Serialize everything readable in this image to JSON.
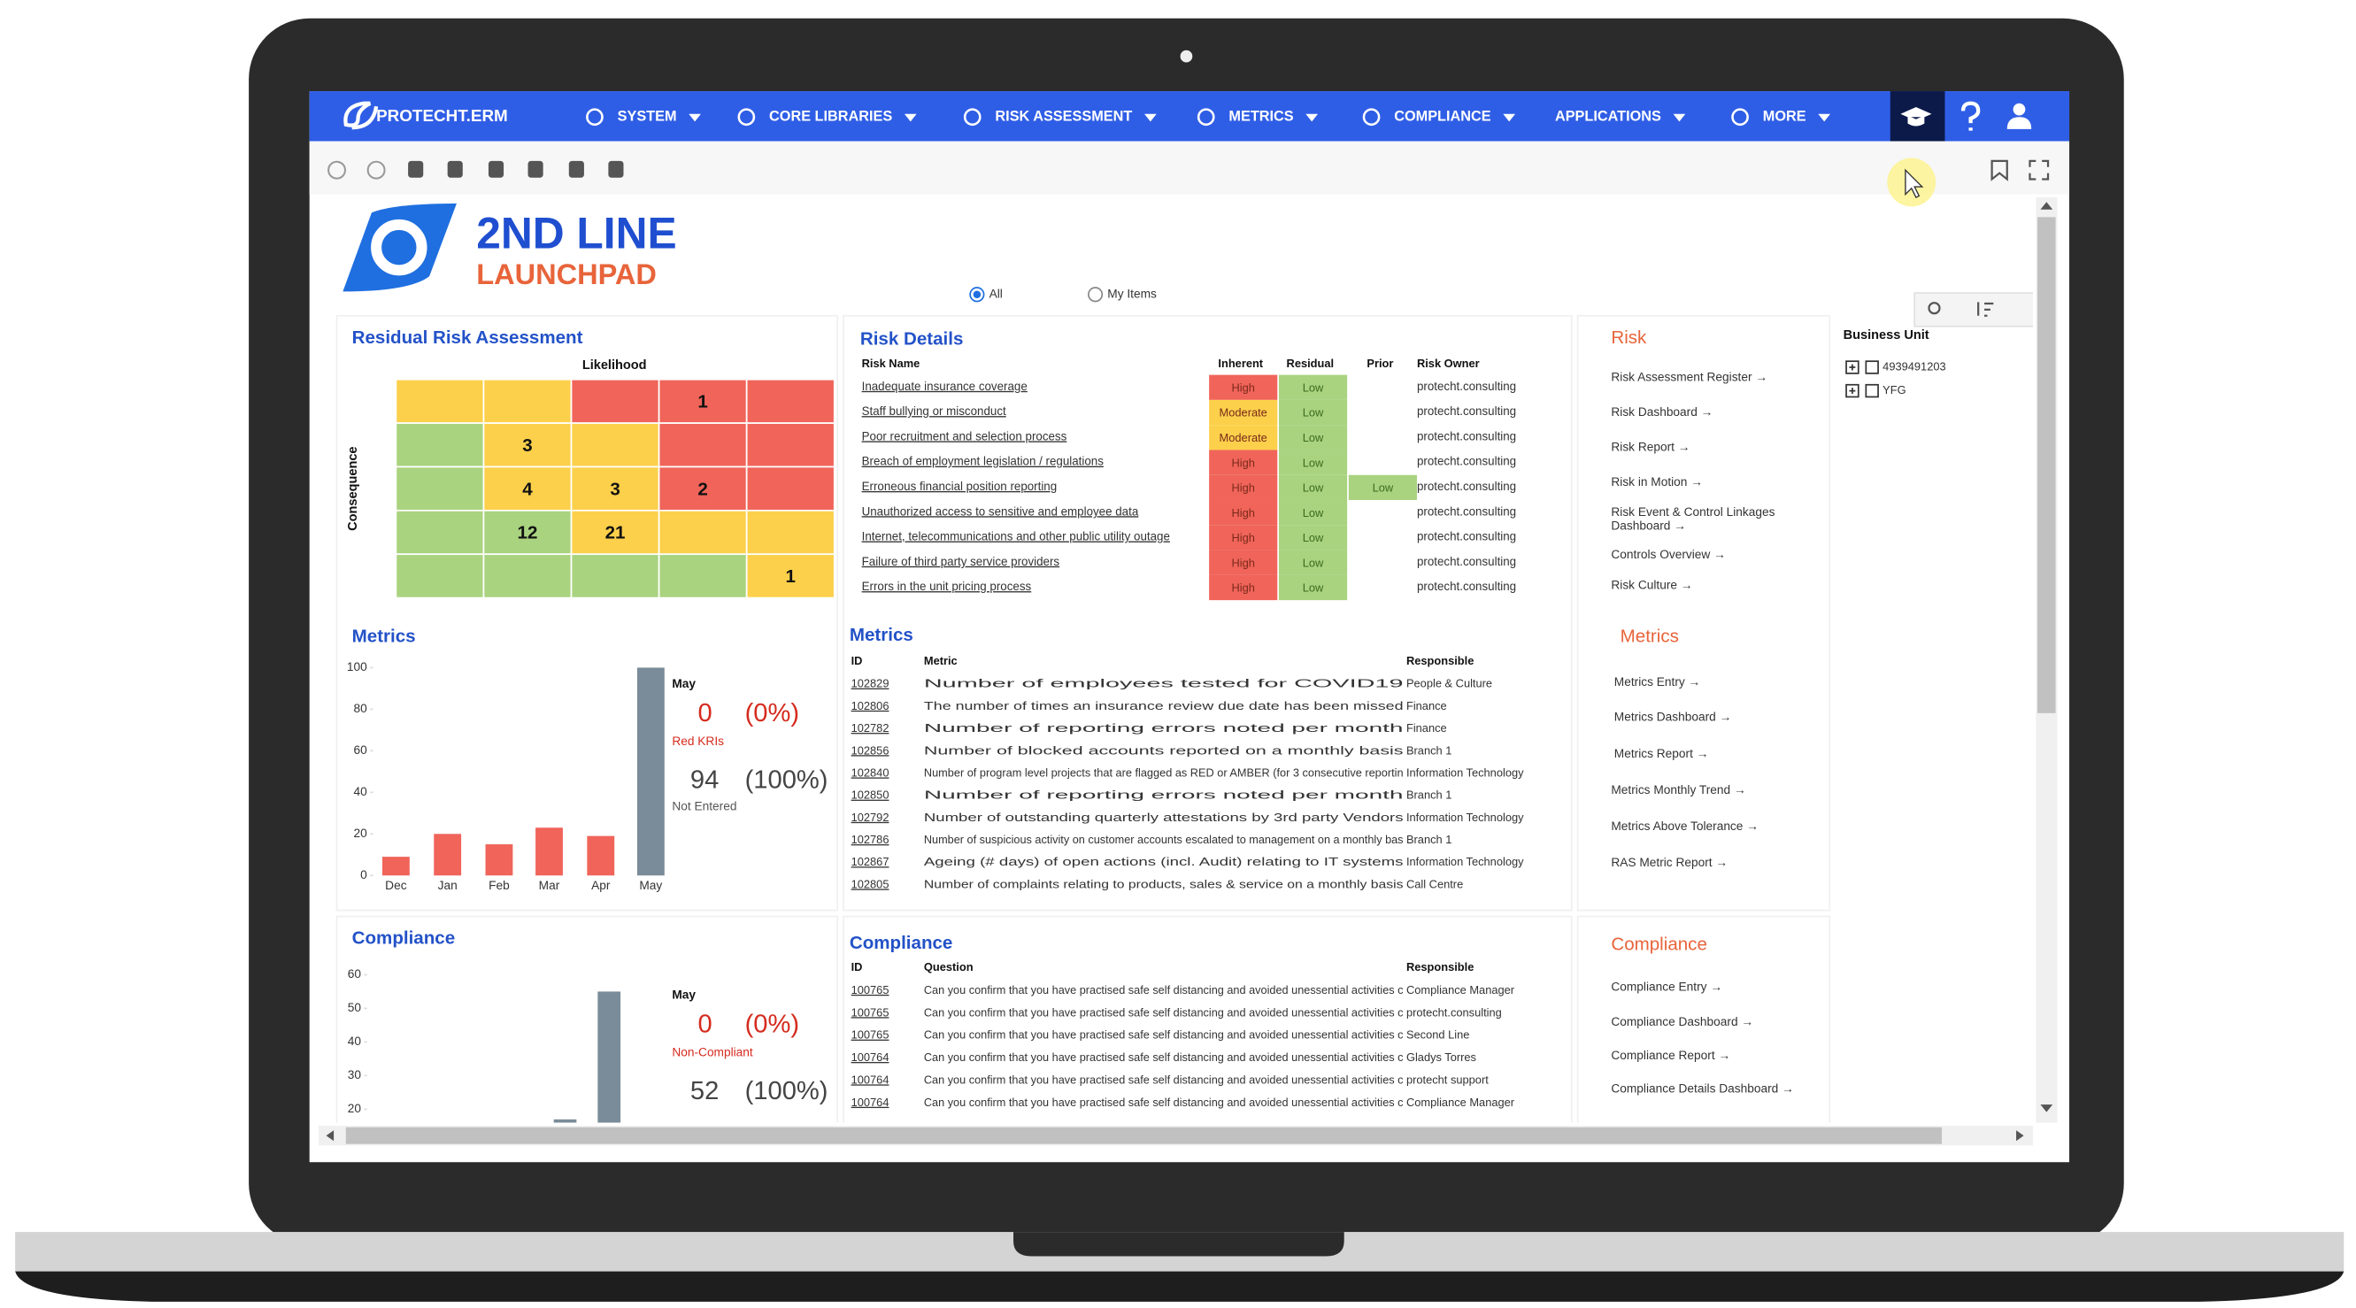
{
  "nav": {
    "brand": "PROTECHT.ERM",
    "items": [
      "SYSTEM",
      "CORE LIBRARIES",
      "RISK ASSESSMENT",
      "METRICS",
      "COMPLIANCE",
      "APPLICATIONS",
      "MORE"
    ]
  },
  "header": {
    "title": "2ND LINE",
    "subtitle": "LAUNCHPAD",
    "filters": [
      "All",
      "My Items"
    ]
  },
  "heatmap": {
    "title": "Residual Risk Assessment",
    "x_label": "Likelihood",
    "y_label": "Consequence",
    "counts": [
      [
        null,
        null,
        null,
        1,
        null
      ],
      [
        null,
        3,
        null,
        null,
        null
      ],
      [
        null,
        4,
        3,
        2,
        null
      ],
      [
        null,
        12,
        21,
        null,
        null
      ],
      [
        null,
        null,
        null,
        null,
        1
      ]
    ],
    "cell_colors": [
      [
        "#fcd04b",
        "#fcd04b",
        "#f0645a",
        "#f0645a",
        "#f0645a"
      ],
      [
        "#a9d37f",
        "#fcd04b",
        "#fcd04b",
        "#f0645a",
        "#f0645a"
      ],
      [
        "#a9d37f",
        "#fcd04b",
        "#fcd04b",
        "#f0645a",
        "#f0645a"
      ],
      [
        "#a9d37f",
        "#a9d37f",
        "#fcd04b",
        "#fcd04b",
        "#fcd04b"
      ],
      [
        "#a9d37f",
        "#a9d37f",
        "#a9d37f",
        "#a9d37f",
        "#fcd04b"
      ]
    ]
  },
  "risk_details": {
    "title": "Risk Details",
    "columns": [
      "Risk Name",
      "Inherent",
      "Residual",
      "Prior",
      "Risk Owner"
    ],
    "level_colors": {
      "High": "#f0645a",
      "Moderate": "#fcd04b",
      "Low": "#a9d37f"
    },
    "rows": [
      [
        "Inadequate insurance coverage",
        "High",
        "Low",
        null,
        "protecht.consulting"
      ],
      [
        "Staff bullying or misconduct",
        "Moderate",
        "Low",
        null,
        "protecht.consulting"
      ],
      [
        "Poor recruitment and selection process",
        "Moderate",
        "Low",
        null,
        "protecht.consulting"
      ],
      [
        "Breach of employment legislation / regulations",
        "High",
        "Low",
        null,
        "protecht.consulting"
      ],
      [
        "Erroneous financial position reporting",
        "High",
        "Low",
        "Low",
        "protecht.consulting"
      ],
      [
        "Unauthorized access to sensitive and employee data",
        "High",
        "Low",
        null,
        "protecht.consulting"
      ],
      [
        "Internet, telecommunications and other public utility outage",
        "High",
        "Low",
        null,
        "protecht.consulting"
      ],
      [
        "Failure of third party service providers",
        "High",
        "Low",
        null,
        "protecht.consulting"
      ],
      [
        "Errors in the unit pricing process",
        "High",
        "Low",
        null,
        "protecht.consulting"
      ]
    ]
  },
  "metrics_chart": {
    "title": "Metrics",
    "type": "bar",
    "categories": [
      "Dec",
      "Jan",
      "Feb",
      "Mar",
      "Apr",
      "May"
    ],
    "values": [
      9,
      20,
      15,
      23,
      19,
      100
    ],
    "colors": [
      "#f0645a",
      "#f0645a",
      "#f0645a",
      "#f0645a",
      "#f0645a",
      "#7a8c99"
    ],
    "ylim": [
      0,
      100
    ],
    "yticks": [
      0,
      20,
      40,
      60,
      80,
      100
    ],
    "kpi": {
      "period": "May",
      "count_a": "0",
      "pct_a": "(0%)",
      "label_a": "Red KRIs",
      "count_b": "94",
      "pct_b": "(100%)",
      "label_b": "Not Entered"
    }
  },
  "metrics_table": {
    "title": "Metrics",
    "columns": [
      "ID",
      "Metric",
      "Responsible"
    ],
    "rows": [
      [
        "102829",
        "Number of employees tested for COVID19",
        "People & Culture"
      ],
      [
        "102806",
        "The number of times an insurance review due date has been missed",
        "Finance"
      ],
      [
        "102782",
        "Number of reporting errors noted per month",
        "Finance"
      ],
      [
        "102856",
        "Number of blocked accounts reported on a monthly basis",
        "Branch 1"
      ],
      [
        "102840",
        "Number of program level projects that are flagged as RED or AMBER (for 3 consecutive reportin",
        "Information Technology"
      ],
      [
        "102850",
        "Number of reporting errors noted per month",
        "Branch 1"
      ],
      [
        "102792",
        "Number of outstanding quarterly attestations by 3rd party Vendors",
        "Information Technology"
      ],
      [
        "102786",
        "Number of suspicious activity on customer accounts escalated to management on a monthly bas",
        "Branch 1"
      ],
      [
        "102867",
        "Ageing (# days) of open actions (incl. Audit) relating to IT systems",
        "Information Technology"
      ],
      [
        "102805",
        "Number of complaints relating to products, sales & service on a monthly basis",
        "Call Centre"
      ]
    ]
  },
  "compliance_chart": {
    "title": "Compliance",
    "type": "bar",
    "categories": [
      null,
      null
    ],
    "values": [
      17,
      55
    ],
    "colors": [
      "#7a8c99",
      "#7a8c99"
    ],
    "ylim": [
      16,
      62
    ],
    "yticks": [
      20,
      30,
      40,
      50,
      60
    ],
    "kpi": {
      "period": "May",
      "count_a": "0",
      "pct_a": "(0%)",
      "label_a": "Non-Compliant",
      "count_b": "52",
      "pct_b": "(100%)"
    }
  },
  "compliance_table": {
    "title": "Compliance",
    "columns": [
      "ID",
      "Question",
      "Responsible"
    ],
    "rows": [
      [
        "100765",
        "Can you confirm that you have practised safe self distancing and avoided unessential activities c",
        "Compliance Manager"
      ],
      [
        "100765",
        "Can you confirm that you have practised safe self distancing and avoided unessential activities c",
        "protecht.consulting"
      ],
      [
        "100765",
        "Can you confirm that you have practised safe self distancing and avoided unessential activities c",
        "Second Line"
      ],
      [
        "100764",
        "Can you confirm that you have practised safe self distancing and avoided unessential activities c",
        "Gladys Torres"
      ],
      [
        "100764",
        "Can you confirm that you have practised safe self distancing and avoided unessential activities c",
        "protecht support"
      ],
      [
        "100764",
        "Can you confirm that you have practised safe self distancing and avoided unessential activities c",
        "Compliance Manager"
      ]
    ]
  },
  "links": {
    "risk": {
      "title": "Risk",
      "items": [
        "Risk Assessment Register →",
        "Risk Dashboard →",
        "Risk Report →",
        "Risk in Motion →",
        [
          "Risk Event & Control Linkages",
          "Dashboard →"
        ],
        "Controls Overview →",
        "Risk Culture →"
      ]
    },
    "metrics": {
      "title": "Metrics",
      "items": [
        "Metrics Entry →",
        "Metrics Dashboard →",
        "Metrics Report →",
        "Metrics Monthly Trend →",
        "Metrics Above Tolerance →",
        "RAS Metric Report →"
      ]
    },
    "compliance": {
      "title": "Compliance",
      "items": [
        "Compliance Entry →",
        "Compliance Dashboard →",
        "Compliance Report →",
        "Compliance Details Dashboard →"
      ]
    }
  },
  "business_unit": {
    "title": "Business Unit",
    "items": [
      "4939491203",
      "YFG"
    ]
  }
}
